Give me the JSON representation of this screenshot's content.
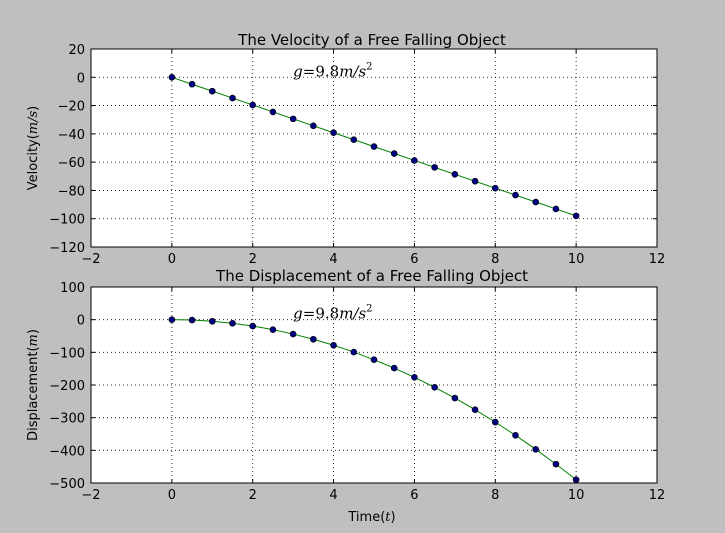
{
  "chart_data": [
    {
      "type": "line",
      "title": "The Velocity of a Free Falling Object",
      "ylabel_prefix": "Velocity(",
      "ylabel_unit": "m/s",
      "ylabel_suffix": ")",
      "xlabel_prefix": "",
      "xlabel_unit": "",
      "xlabel_suffix": "",
      "annotation": {
        "var": "g",
        "eq": "=9.8",
        "unit": "m/s",
        "exp": "2",
        "x": 3.0,
        "y": 0
      },
      "xlim": [
        -2,
        12
      ],
      "ylim": [
        -120,
        20
      ],
      "xticks": [
        -2,
        0,
        2,
        4,
        6,
        8,
        10,
        12
      ],
      "yticks": [
        -120,
        -100,
        -80,
        -60,
        -40,
        -20,
        0,
        20
      ],
      "xtick_labels": [
        "−2",
        "0",
        "2",
        "4",
        "6",
        "8",
        "10",
        "12"
      ],
      "ytick_labels": [
        "−120",
        "−100",
        "−80",
        "−60",
        "−40",
        "−20",
        "0",
        "20"
      ],
      "grid": true,
      "line_color": "#008000",
      "marker_color": "#000080",
      "x": [
        0,
        0.5,
        1,
        1.5,
        2,
        2.5,
        3,
        3.5,
        4,
        4.5,
        5,
        5.5,
        6,
        6.5,
        7,
        7.5,
        8,
        8.5,
        9,
        9.5,
        10
      ],
      "y": [
        0,
        -4.9,
        -9.8,
        -14.7,
        -19.6,
        -24.5,
        -29.4,
        -34.3,
        -39.2,
        -44.1,
        -49,
        -53.9,
        -58.8,
        -63.7,
        -68.6,
        -73.5,
        -78.4,
        -83.3,
        -88.2,
        -93.1,
        -98
      ]
    },
    {
      "type": "line",
      "title": "The Displacement of a Free Falling Object",
      "ylabel_prefix": "Displacement(",
      "ylabel_unit": "m",
      "ylabel_suffix": ")",
      "xlabel_prefix": "Time(",
      "xlabel_unit": "t",
      "xlabel_suffix": ")",
      "annotation": {
        "var": "g",
        "eq": "=9.8",
        "unit": "m/s",
        "exp": "2",
        "x": 3.0,
        "y": 0
      },
      "xlim": [
        -2,
        12
      ],
      "ylim": [
        -500,
        100
      ],
      "xticks": [
        -2,
        0,
        2,
        4,
        6,
        8,
        10,
        12
      ],
      "yticks": [
        -500,
        -400,
        -300,
        -200,
        -100,
        0,
        100
      ],
      "xtick_labels": [
        "−2",
        "0",
        "2",
        "4",
        "6",
        "8",
        "10",
        "12"
      ],
      "ytick_labels": [
        "−500",
        "−400",
        "−300",
        "−200",
        "−100",
        "0",
        "100"
      ],
      "grid": true,
      "line_color": "#008000",
      "marker_color": "#000080",
      "x": [
        0,
        0.5,
        1,
        1.5,
        2,
        2.5,
        3,
        3.5,
        4,
        4.5,
        5,
        5.5,
        6,
        6.5,
        7,
        7.5,
        8,
        8.5,
        9,
        9.5,
        10
      ],
      "y": [
        0,
        -1.2,
        -4.9,
        -11,
        -19.6,
        -30.6,
        -44.1,
        -60,
        -78.4,
        -99.2,
        -122.5,
        -148.2,
        -176.4,
        -207,
        -240.1,
        -275.6,
        -313.6,
        -354,
        -396.9,
        -442.2,
        -490
      ]
    }
  ]
}
